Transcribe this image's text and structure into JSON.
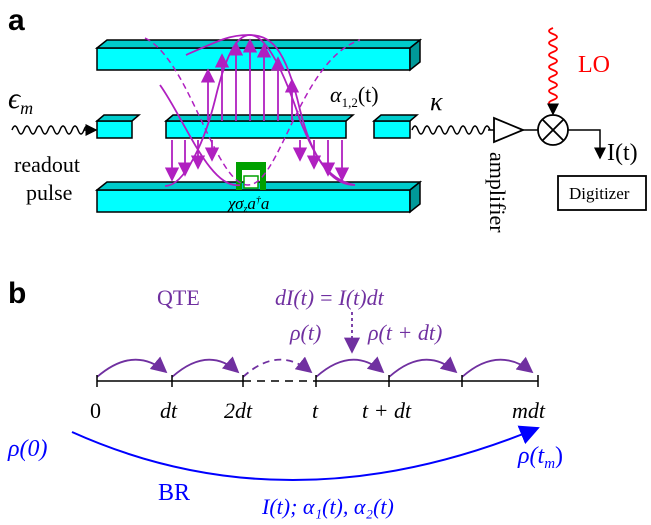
{
  "panel_a": {
    "label": "a",
    "epsilon": "ϵ",
    "epsilon_sub": "m",
    "readout_line1": "readout",
    "readout_line2": "pulse",
    "alpha_sym": "α",
    "alpha_sub": "1,2",
    "alpha_arg": "(t)",
    "kappa": "κ",
    "hamiltonian_chi": "χσ",
    "hamiltonian_z": "z",
    "hamiltonian_a": "a",
    "hamiltonian_dag": "†",
    "hamiltonian_a2": "a",
    "amplifier": "amplifier",
    "lo": "LO",
    "output": "I(t)",
    "digitizer": "Digitizer",
    "colors": {
      "cavity": "#00ffff",
      "field": "#b020c0",
      "lo": "#ff0000",
      "qubit": "#00a000"
    }
  },
  "panel_b": {
    "label": "b",
    "qte": "QTE",
    "eq_lhs": "dI(t)",
    "eq_eq": "=",
    "eq_rhs": "I(t)dt",
    "rho_t": "ρ(t)",
    "rho_tdt": "ρ(t + dt)",
    "ticks": [
      "0",
      "dt",
      "2dt",
      "t",
      "t + dt",
      "mdt"
    ],
    "rho0": "ρ(0)",
    "rho_tm": "ρ(t",
    "rho_tm_sub": "m",
    "rho_tm_close": ")",
    "br": "BR",
    "br_label": "I(t);  α₁(t), α₂(t)",
    "colors": {
      "qte": "#7030a0",
      "br": "#0000ff"
    }
  }
}
